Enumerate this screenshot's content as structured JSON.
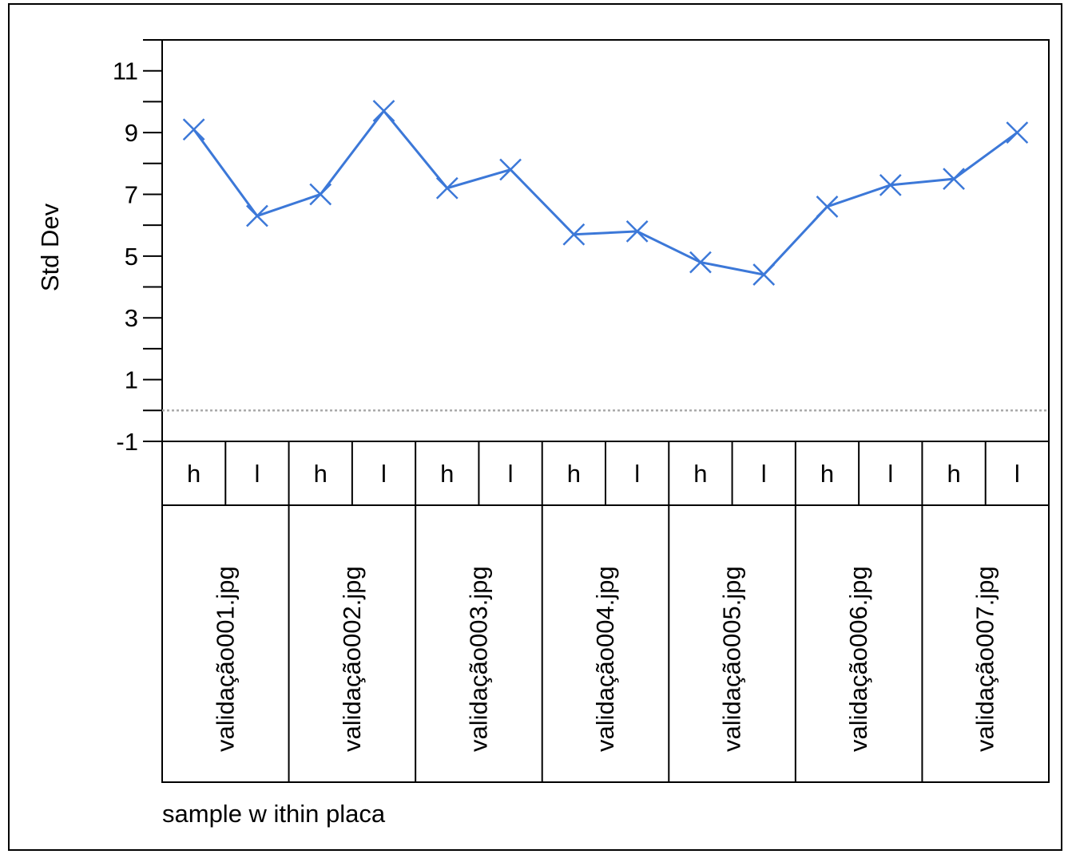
{
  "chart_data": {
    "type": "line",
    "title": "",
    "ylabel": "Std Dev",
    "xlabel": "sample w ithin placa",
    "ylim": [
      -1,
      12
    ],
    "y_ticks": [
      -1,
      1,
      3,
      5,
      7,
      9,
      11
    ],
    "reference_line": 0,
    "groups": [
      "validação001.jpg",
      "validação002.jpg",
      "validação003.jpg",
      "validação004.jpg",
      "validação005.jpg",
      "validação006.jpg",
      "validação007.jpg"
    ],
    "subgroups": [
      "h",
      "l"
    ],
    "series": [
      {
        "values": [
          9.1,
          6.3,
          7.0,
          9.7,
          7.2,
          7.8,
          5.7,
          5.8,
          4.8,
          4.4,
          6.6,
          7.3,
          7.5,
          9.0
        ],
        "color": "#3c78d8",
        "marker": "x"
      }
    ],
    "grid": false,
    "legend": "none"
  }
}
